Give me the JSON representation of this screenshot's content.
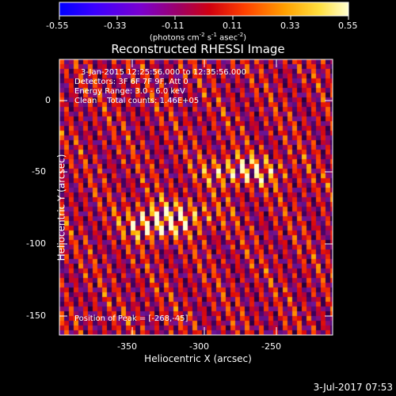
{
  "title": "Reconstructed RHESSI Image",
  "colorbar": {
    "ticks": [
      "-0.55",
      "-0.33",
      "-0.11",
      "0.11",
      "0.33",
      "0.55"
    ],
    "unit_prefix": "(photons cm",
    "unit_exp1": "-2",
    "unit_mid1": " s",
    "unit_exp2": "-1",
    "unit_mid2": " asec",
    "unit_exp3": "-2",
    "unit_suffix": ")"
  },
  "annotations": {
    "time_range": "3-Jan-2015 12:25:56.000 to 12:35:56.000",
    "detectors": "Detectors: 3F 6F 7F 9F, Att 0",
    "energy_range": "Energy Range: 3.0 - 6.0 keV",
    "method_counts": "Clean    Total counts: 1.46E+05",
    "peak_position": "Position of Peak = [-268,-45]"
  },
  "axes": {
    "xlabel": "Heliocentric X (arcsec)",
    "ylabel": "Heliocentric Y (arcsec)",
    "xticks": [
      "-350",
      "-300",
      "-250"
    ],
    "yticks": [
      "0",
      "-50",
      "-100",
      "-150"
    ]
  },
  "footer_date": "3-Jul-2017 07:53",
  "colors": {
    "background": "#000000",
    "axes": "#ffffff"
  }
}
